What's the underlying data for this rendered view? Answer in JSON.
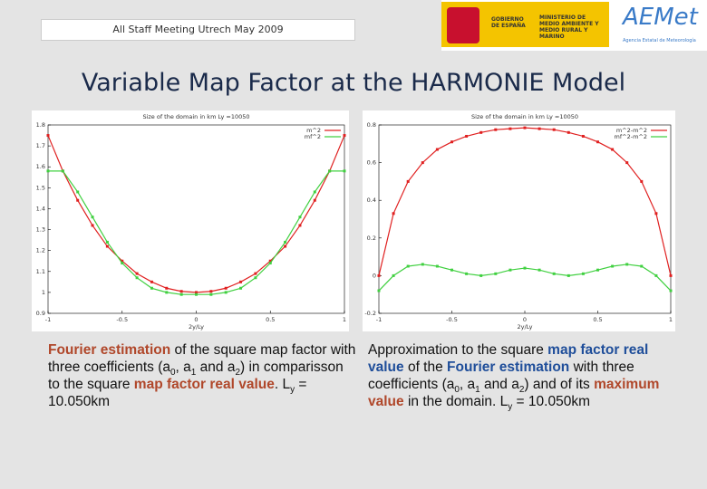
{
  "header": {
    "meeting": "All Staff Meeting Utrech May 2009",
    "logo_gov": "GOBIERNO DE ESPAÑA",
    "logo_ministry": "MINISTERIO DE MEDIO AMBIENTE Y MEDIO RURAL Y MARINO",
    "logo_aemet": "AEMet",
    "logo_aemet_sub": "Agencia Estatal de Meteorología"
  },
  "title": "Variable Map Factor at the HARMONIE Model",
  "chart_data": [
    {
      "type": "line",
      "title": "Size of the domain in km Ly =10050",
      "xlabel": "2y/Ly",
      "x": [
        -1,
        -0.9,
        -0.8,
        -0.7,
        -0.6,
        -0.5,
        -0.4,
        -0.3,
        -0.2,
        -0.1,
        0,
        0.1,
        0.2,
        0.3,
        0.4,
        0.5,
        0.6,
        0.7,
        0.8,
        0.9,
        1
      ],
      "series": [
        {
          "name": "m^2",
          "color": "#e02020",
          "values": [
            1.75,
            1.58,
            1.44,
            1.32,
            1.22,
            1.15,
            1.09,
            1.05,
            1.02,
            1.005,
            1.0,
            1.005,
            1.02,
            1.05,
            1.09,
            1.15,
            1.22,
            1.32,
            1.44,
            1.58,
            1.75
          ]
        },
        {
          "name": "mf^2",
          "color": "#40d040",
          "values": [
            1.58,
            1.58,
            1.48,
            1.36,
            1.24,
            1.14,
            1.07,
            1.02,
            1.0,
            0.99,
            0.99,
            0.99,
            1.0,
            1.02,
            1.07,
            1.14,
            1.24,
            1.36,
            1.48,
            1.58,
            1.58
          ]
        }
      ],
      "xlim": [
        -1,
        1
      ],
      "xticks": [
        -1,
        -0.5,
        0,
        0.5,
        1
      ],
      "ylim": [
        0.9,
        1.8
      ],
      "yticks": [
        0.9,
        1,
        1.1,
        1.2,
        1.3,
        1.4,
        1.5,
        1.6,
        1.7,
        1.8
      ],
      "legend": "top-right"
    },
    {
      "type": "line",
      "title": "Size of the domain in km Ly =10050",
      "xlabel": "2y/Ly",
      "x": [
        -1,
        -0.9,
        -0.8,
        -0.7,
        -0.6,
        -0.5,
        -0.4,
        -0.3,
        -0.2,
        -0.1,
        0,
        0.1,
        0.2,
        0.3,
        0.4,
        0.5,
        0.6,
        0.7,
        0.8,
        0.9,
        1
      ],
      "series": [
        {
          "name": "m^2-m^2",
          "color": "#e02020",
          "values": [
            0,
            0.33,
            0.5,
            0.6,
            0.67,
            0.71,
            0.74,
            0.76,
            0.775,
            0.78,
            0.785,
            0.78,
            0.775,
            0.76,
            0.74,
            0.71,
            0.67,
            0.6,
            0.5,
            0.33,
            0
          ]
        },
        {
          "name": "mf^2-m^2",
          "color": "#40d040",
          "values": [
            -0.08,
            0,
            0.05,
            0.06,
            0.05,
            0.03,
            0.01,
            0,
            0.01,
            0.03,
            0.04,
            0.03,
            0.01,
            0,
            0.01,
            0.03,
            0.05,
            0.06,
            0.05,
            0,
            -0.08
          ]
        }
      ],
      "xlim": [
        -1,
        1
      ],
      "xticks": [
        -1,
        -0.5,
        0,
        0.5,
        1
      ],
      "ylim": [
        -0.2,
        0.8
      ],
      "yticks": [
        -0.2,
        0,
        0.2,
        0.4,
        0.6,
        0.8
      ],
      "legend": "top-right"
    }
  ],
  "captions": [
    [
      {
        "text": "Fourier estimation",
        "color": "#b0472a"
      },
      {
        "text": " of the square map factor with three coefficients (a"
      },
      {
        "text": "0",
        "sub": true
      },
      {
        "text": ", a"
      },
      {
        "text": "1",
        "sub": true
      },
      {
        "text": " and a"
      },
      {
        "text": "2",
        "sub": true
      },
      {
        "text": ") in comparisson to the square "
      },
      {
        "text": "map factor real value",
        "color": "#b0472a"
      },
      {
        "text": ". L"
      },
      {
        "text": "y",
        "sub": true
      },
      {
        "text": " = 10.050km"
      }
    ],
    [
      {
        "text": "Approximation to the square "
      },
      {
        "text": "map factor real value",
        "color": "#1f4e9a"
      },
      {
        "text": " of the "
      },
      {
        "text": "Fourier estimation",
        "color": "#1f4e9a"
      },
      {
        "text": " with three coefficients (a"
      },
      {
        "text": "0",
        "sub": true
      },
      {
        "text": ", a"
      },
      {
        "text": "1",
        "sub": true
      },
      {
        "text": " and a"
      },
      {
        "text": "2",
        "sub": true
      },
      {
        "text": ") and of its "
      },
      {
        "text": "maximum value",
        "color": "#b0472a"
      },
      {
        "text": " in the domain. L"
      },
      {
        "text": "y",
        "sub": true
      },
      {
        "text": " = 10.050km"
      }
    ]
  ]
}
